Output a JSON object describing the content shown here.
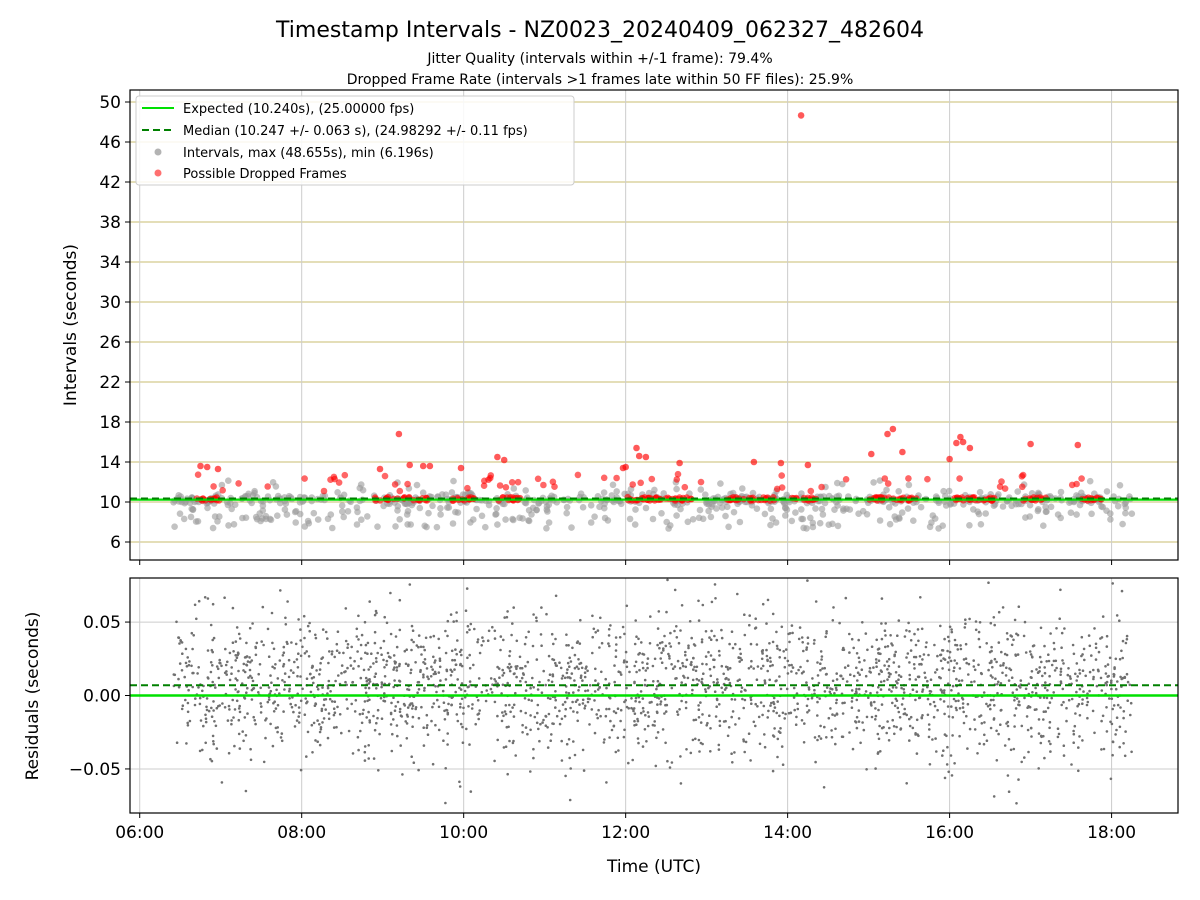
{
  "chart_data": [
    {
      "type": "scatter",
      "title": "Timestamp Intervals - NZ0023_20240409_062327_482604",
      "subtitle_lines": [
        "Jitter Quality (intervals within +/-1 frame): 79.4%",
        "Dropped Frame Rate (intervals >1 frames late within 50 FF files): 25.9%"
      ],
      "xlabel": "",
      "ylabel": "Intervals (seconds)",
      "x_range_hours": [
        5.88,
        18.82
      ],
      "ylim": [
        4.2,
        51.2
      ],
      "yticks": [
        6,
        10,
        14,
        18,
        22,
        26,
        30,
        34,
        38,
        42,
        46,
        50
      ],
      "grid": true,
      "legend_position": "upper-left",
      "legend": [
        {
          "label": "Expected (10.240s), (25.00000 fps)",
          "kind": "solid-line",
          "color": "#00e000"
        },
        {
          "label": "Median (10.247 +/- 0.063 s), (24.98292 +/- 0.11 fps)",
          "kind": "dashed-line",
          "color": "#008000"
        },
        {
          "label": "Intervals, max (48.655s), min (6.196s)",
          "kind": "marker",
          "color": "#808080"
        },
        {
          "label": "Possible Dropped Frames",
          "kind": "marker",
          "color": "#ff0000"
        }
      ],
      "expected_interval": 10.24,
      "median_interval": 10.247,
      "series": [
        {
          "name": "Intervals, max (48.655s), min (6.196s)",
          "time_range": [
            "06:25",
            "18:15"
          ],
          "typical_value": 10.24,
          "min": 6.196,
          "max": 48.655
        },
        {
          "name": "Possible Dropped Frames",
          "outliers": [
            {
              "x": "14:10",
              "y": 48.655
            },
            {
              "x": "09:12",
              "y": 16.8
            },
            {
              "x": "15:18",
              "y": 17.3
            },
            {
              "x": "15:14",
              "y": 16.8
            },
            {
              "x": "16:08",
              "y": 16.5
            },
            {
              "x": "16:05",
              "y": 15.9
            },
            {
              "x": "16:10",
              "y": 16.0
            },
            {
              "x": "17:00",
              "y": 15.8
            },
            {
              "x": "17:35",
              "y": 15.7
            },
            {
              "x": "12:08",
              "y": 15.4
            },
            {
              "x": "16:15",
              "y": 15.4
            },
            {
              "x": "15:25",
              "y": 15.0
            },
            {
              "x": "12:10",
              "y": 14.6
            },
            {
              "x": "12:15",
              "y": 14.5
            },
            {
              "x": "10:25",
              "y": 14.5
            },
            {
              "x": "10:30",
              "y": 14.2
            },
            {
              "x": "15:02",
              "y": 14.8
            },
            {
              "x": "16:00",
              "y": 14.3
            },
            {
              "x": "06:45",
              "y": 13.6
            },
            {
              "x": "06:50",
              "y": 13.5
            },
            {
              "x": "06:58",
              "y": 13.3
            },
            {
              "x": "09:30",
              "y": 13.6
            },
            {
              "x": "09:20",
              "y": 13.7
            },
            {
              "x": "09:35",
              "y": 13.6
            },
            {
              "x": "08:58",
              "y": 13.3
            },
            {
              "x": "09:58",
              "y": 13.4
            },
            {
              "x": "11:58",
              "y": 13.4
            },
            {
              "x": "12:00",
              "y": 13.5
            },
            {
              "x": "12:40",
              "y": 13.9
            },
            {
              "x": "13:35",
              "y": 14.0
            },
            {
              "x": "13:55",
              "y": 13.9
            },
            {
              "x": "14:15",
              "y": 13.7
            }
          ]
        }
      ]
    },
    {
      "type": "scatter",
      "title": "",
      "xlabel": "Time (UTC)",
      "ylabel": "Residuals (seconds)",
      "xticks": [
        "06:00",
        "08:00",
        "10:00",
        "12:00",
        "14:00",
        "16:00",
        "18:00"
      ],
      "x_range_hours": [
        5.88,
        18.82
      ],
      "ylim": [
        -0.08,
        0.08
      ],
      "yticks": [
        {
          "value": 0.05,
          "label": "0.05"
        },
        {
          "value": 0.0,
          "label": "0.00"
        },
        {
          "value": -0.05,
          "label": "−0.05"
        }
      ],
      "grid": true,
      "reference_lines": [
        {
          "kind": "expected",
          "y": 0.0,
          "color": "#00e000"
        },
        {
          "kind": "median",
          "y": 0.007,
          "color": "#008000"
        }
      ],
      "series": [
        {
          "name": "",
          "time_range": [
            "06:25",
            "18:15"
          ],
          "y_range": [
            -0.08,
            0.08
          ],
          "center": 0.007,
          "spread_sd": 0.025,
          "color": "#707070"
        }
      ]
    }
  ],
  "colors": {
    "expected": "#00e000",
    "median": "#008000",
    "intervals": "#999999",
    "dropped": "#ff0000",
    "residual_points": "#707070",
    "grid_top": "#d4c98e",
    "grid": "#cccccc"
  }
}
